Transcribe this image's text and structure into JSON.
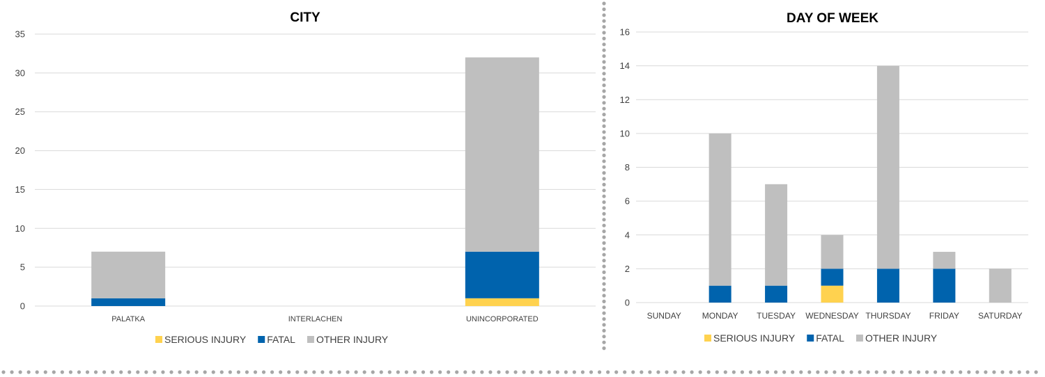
{
  "colors": {
    "serious": "#ffd24f",
    "fatal": "#0063ad",
    "other": "#bfbfbf",
    "grid": "#d9d9d9",
    "text": "#404040",
    "title": "#000000",
    "dots": "#a6a6a6"
  },
  "chart_data": [
    {
      "type": "bar",
      "stacked": true,
      "title": "CITY",
      "xlabel": "",
      "ylabel": "",
      "categories": [
        "PALATKA",
        "INTERLACHEN",
        "UNINCORPORATED"
      ],
      "series": [
        {
          "name": "SERIOUS INJURY",
          "color_key": "serious",
          "values": [
            0,
            0,
            1
          ]
        },
        {
          "name": "FATAL",
          "color_key": "fatal",
          "values": [
            1,
            0,
            6
          ]
        },
        {
          "name": "OTHER INJURY",
          "color_key": "other",
          "values": [
            6,
            0,
            25
          ]
        }
      ],
      "ylim": [
        0,
        35
      ],
      "yticks": [
        0,
        5,
        10,
        15,
        20,
        25,
        30,
        35
      ],
      "grid": true,
      "legend": "bottom"
    },
    {
      "type": "bar",
      "stacked": true,
      "title": "DAY OF WEEK",
      "xlabel": "",
      "ylabel": "",
      "categories": [
        "SUNDAY",
        "MONDAY",
        "TUESDAY",
        "WEDNESDAY",
        "THURSDAY",
        "FRIDAY",
        "SATURDAY"
      ],
      "series": [
        {
          "name": "SERIOUS INJURY",
          "color_key": "serious",
          "values": [
            0,
            0,
            0,
            1,
            0,
            0,
            0
          ]
        },
        {
          "name": "FATAL",
          "color_key": "fatal",
          "values": [
            0,
            1,
            1,
            1,
            2,
            2,
            0
          ]
        },
        {
          "name": "OTHER INJURY",
          "color_key": "other",
          "values": [
            0,
            9,
            6,
            2,
            12,
            1,
            2
          ]
        }
      ],
      "ylim": [
        0,
        16
      ],
      "yticks": [
        0,
        2,
        4,
        6,
        8,
        10,
        12,
        14,
        16
      ],
      "grid": true,
      "legend": "bottom"
    }
  ]
}
